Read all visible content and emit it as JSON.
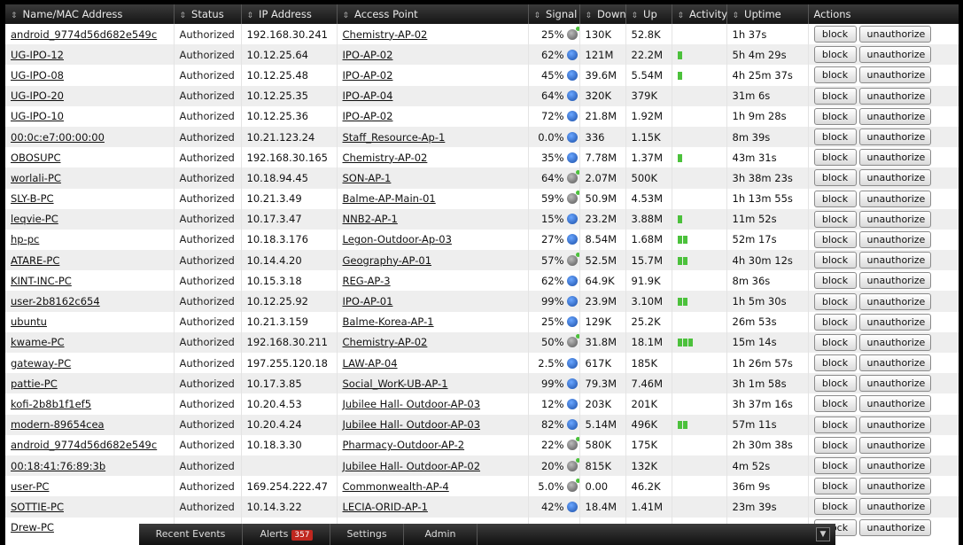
{
  "columns": {
    "name": "Name/MAC Address",
    "status": "Status",
    "ip": "IP Address",
    "ap": "Access Point",
    "signal": "Signal",
    "down": "Down",
    "up": "Up",
    "activity": "Activity",
    "uptime": "Uptime",
    "actions": "Actions"
  },
  "buttons": {
    "block": "block",
    "unauthorize": "unauthorize"
  },
  "clients": [
    {
      "name": "android_9774d56d682e549c",
      "status": "Authorized",
      "ip": "192.168.30.241",
      "ap": "Chemistry-AP-02",
      "signal": "25%",
      "signal_icon": "green-dot",
      "down": "130K",
      "up": "52.8K",
      "activity": 0,
      "uptime": "1h 37s"
    },
    {
      "name": "UG-IPO-12",
      "status": "Authorized",
      "ip": "10.12.25.64",
      "ap": "IPO-AP-02",
      "signal": "62%",
      "signal_icon": "blue",
      "down": "121M",
      "up": "22.2M",
      "activity": 1,
      "uptime": "5h 4m 29s"
    },
    {
      "name": "UG-IPO-08",
      "status": "Authorized",
      "ip": "10.12.25.48",
      "ap": "IPO-AP-02",
      "signal": "45%",
      "signal_icon": "blue",
      "down": "39.6M",
      "up": "5.54M",
      "activity": 1,
      "uptime": "4h 25m 37s"
    },
    {
      "name": "UG-IPO-20",
      "status": "Authorized",
      "ip": "10.12.25.35",
      "ap": "IPO-AP-04",
      "signal": "64%",
      "signal_icon": "blue",
      "down": "320K",
      "up": "379K",
      "activity": 0,
      "uptime": "31m 6s"
    },
    {
      "name": "UG-IPO-10",
      "status": "Authorized",
      "ip": "10.12.25.36",
      "ap": "IPO-AP-02",
      "signal": "72%",
      "signal_icon": "blue",
      "down": "21.8M",
      "up": "1.92M",
      "activity": 0,
      "uptime": "1h 9m 28s"
    },
    {
      "name": "00:0c:e7:00:00:00",
      "status": "Authorized",
      "ip": "10.21.123.24",
      "ap": "Staff_Resource-Ap-1",
      "signal": "0.0%",
      "signal_icon": "blue",
      "down": "336",
      "up": "1.15K",
      "activity": 0,
      "uptime": "8m 39s"
    },
    {
      "name": "OBOSUPC",
      "status": "Authorized",
      "ip": "192.168.30.165",
      "ap": "Chemistry-AP-02",
      "signal": "35%",
      "signal_icon": "blue",
      "down": "7.78M",
      "up": "1.37M",
      "activity": 1,
      "uptime": "43m 31s"
    },
    {
      "name": "worlali-PC",
      "status": "Authorized",
      "ip": "10.18.94.45",
      "ap": "SON-AP-1",
      "signal": "64%",
      "signal_icon": "green-dot",
      "down": "2.07M",
      "up": "500K",
      "activity": 0,
      "uptime": "3h 38m 23s"
    },
    {
      "name": "SLY-B-PC",
      "status": "Authorized",
      "ip": "10.21.3.49",
      "ap": "Balme-AP-Main-01",
      "signal": "59%",
      "signal_icon": "green-dot",
      "down": "50.9M",
      "up": "4.53M",
      "activity": 0,
      "uptime": "1h 13m 55s"
    },
    {
      "name": "leqvie-PC",
      "status": "Authorized",
      "ip": "10.17.3.47",
      "ap": "NNB2-AP-1",
      "signal": "15%",
      "signal_icon": "blue",
      "down": "23.2M",
      "up": "3.88M",
      "activity": 1,
      "uptime": "11m 52s"
    },
    {
      "name": "hp-pc",
      "status": "Authorized",
      "ip": "10.18.3.176",
      "ap": "Legon-Outdoor-Ap-03",
      "signal": "27%",
      "signal_icon": "blue",
      "down": "8.54M",
      "up": "1.68M",
      "activity": 2,
      "uptime": "52m 17s"
    },
    {
      "name": "ATARE-PC",
      "status": "Authorized",
      "ip": "10.14.4.20",
      "ap": "Geography-AP-01",
      "signal": "57%",
      "signal_icon": "green-dot",
      "down": "52.5M",
      "up": "15.7M",
      "activity": 2,
      "uptime": "4h 30m 12s"
    },
    {
      "name": "KINT-INC-PC",
      "status": "Authorized",
      "ip": "10.15.3.18",
      "ap": "REG-AP-3",
      "signal": "62%",
      "signal_icon": "blue",
      "down": "64.9K",
      "up": "91.9K",
      "activity": 0,
      "uptime": "8m 36s"
    },
    {
      "name": "user-2b8162c654",
      "status": "Authorized",
      "ip": "10.12.25.92",
      "ap": "IPO-AP-01",
      "signal": "99%",
      "signal_icon": "blue",
      "down": "23.9M",
      "up": "3.10M",
      "activity": 2,
      "uptime": "1h 5m 30s"
    },
    {
      "name": "ubuntu",
      "status": "Authorized",
      "ip": "10.21.3.159",
      "ap": "Balme-Korea-AP-1",
      "signal": "25%",
      "signal_icon": "blue",
      "down": "129K",
      "up": "25.2K",
      "activity": 0,
      "uptime": "26m 53s"
    },
    {
      "name": "kwame-PC",
      "status": "Authorized",
      "ip": "192.168.30.211",
      "ap": "Chemistry-AP-02",
      "signal": "50%",
      "signal_icon": "green-dot",
      "down": "31.8M",
      "up": "18.1M",
      "activity": 3,
      "uptime": "15m 14s"
    },
    {
      "name": "gateway-PC",
      "status": "Authorized",
      "ip": "197.255.120.18",
      "ap": "LAW-AP-04",
      "signal": "2.5%",
      "signal_icon": "blue",
      "down": "617K",
      "up": "185K",
      "activity": 0,
      "uptime": "1h 26m 57s"
    },
    {
      "name": "pattie-PC",
      "status": "Authorized",
      "ip": "10.17.3.85",
      "ap": "Social_WorK-UB-AP-1",
      "signal": "99%",
      "signal_icon": "blue",
      "down": "79.3M",
      "up": "7.46M",
      "activity": 0,
      "uptime": "3h 1m 58s"
    },
    {
      "name": "kofi-2b8b1f1ef5",
      "status": "Authorized",
      "ip": "10.20.4.53",
      "ap": "Jubilee Hall- Outdoor-AP-03",
      "signal": "12%",
      "signal_icon": "blue",
      "down": "203K",
      "up": "201K",
      "activity": 0,
      "uptime": "3h 37m 16s"
    },
    {
      "name": "modern-89654cea",
      "status": "Authorized",
      "ip": "10.20.4.24",
      "ap": "Jubilee Hall- Outdoor-AP-03",
      "signal": "82%",
      "signal_icon": "blue",
      "down": "5.14M",
      "up": "496K",
      "activity": 2,
      "uptime": "57m 11s"
    },
    {
      "name": "android_9774d56d682e549c",
      "status": "Authorized",
      "ip": "10.18.3.30",
      "ap": "Pharmacy-Outdoor-AP-2",
      "signal": "22%",
      "signal_icon": "green-dot",
      "down": "580K",
      "up": "175K",
      "activity": 0,
      "uptime": "2h 30m 38s"
    },
    {
      "name": "00:18:41:76:89:3b",
      "status": "Authorized",
      "ip": "",
      "ap": "Jubilee Hall- Outdoor-AP-02",
      "signal": "20%",
      "signal_icon": "green-dot",
      "down": "815K",
      "up": "132K",
      "activity": 0,
      "uptime": "4m 52s"
    },
    {
      "name": "user-PC",
      "status": "Authorized",
      "ip": "169.254.222.47",
      "ap": "Commonwealth-AP-4",
      "signal": "5.0%",
      "signal_icon": "green-dot",
      "down": "0.00",
      "up": "46.2K",
      "activity": 0,
      "uptime": "36m 9s"
    },
    {
      "name": "SOTTIE-PC",
      "status": "Authorized",
      "ip": "10.14.3.22",
      "ap": "LECIA-ORID-AP-1",
      "signal": "42%",
      "signal_icon": "blue",
      "down": "18.4M",
      "up": "1.41M",
      "activity": 0,
      "uptime": "23m 39s"
    },
    {
      "name": "Drew-PC",
      "status": "",
      "ip": "",
      "ap": "",
      "signal": "",
      "signal_icon": "",
      "down": "",
      "up": "",
      "activity": 0,
      "uptime": ""
    }
  ],
  "footer": {
    "tabs": [
      "Recent Events",
      "Alerts",
      "Settings",
      "Admin"
    ],
    "alerts_count": "357"
  },
  "colors": {
    "activity": "#4cc13c",
    "badge": "#c0271f"
  }
}
